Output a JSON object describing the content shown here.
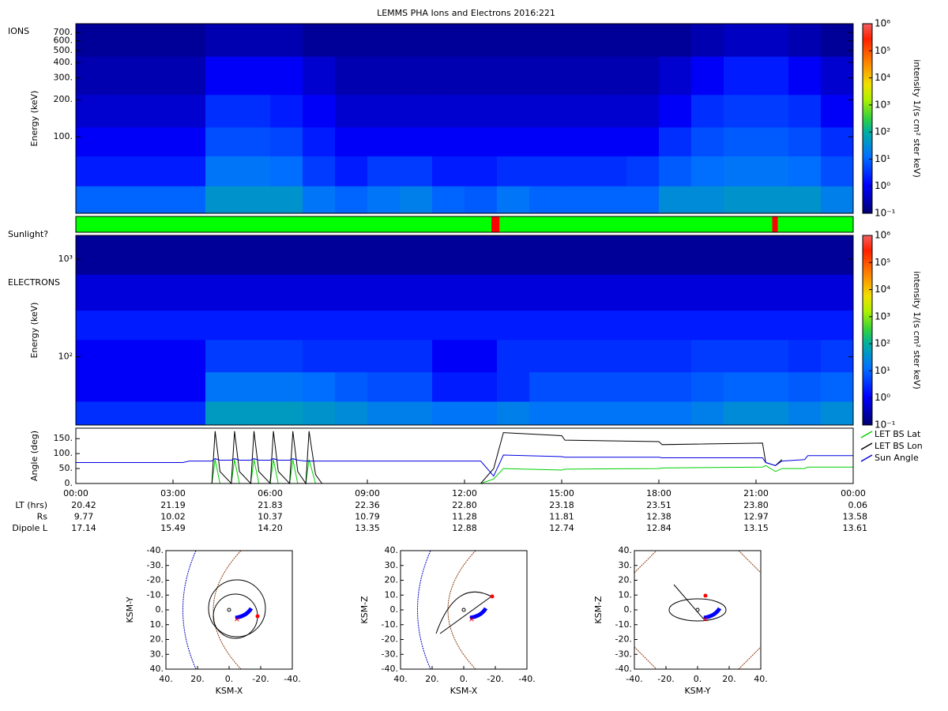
{
  "title": "LEMMS PHA Ions and Electrons  2016:221",
  "chart_data": [
    {
      "type": "heatmap",
      "label": "IONS",
      "ylabel": "Energy (keV)",
      "log": true,
      "xlim": [
        0,
        24
      ],
      "ylim": [
        24,
        826
      ],
      "yticks": [
        {
          "value": 100,
          "label": "100."
        },
        {
          "value": 200,
          "label": "200."
        },
        {
          "value": 300,
          "label": "300."
        },
        {
          "value": 400,
          "label": "400."
        },
        {
          "value": 500,
          "label": "500."
        },
        {
          "value": 600,
          "label": "600."
        },
        {
          "value": 700,
          "label": "700."
        }
      ],
      "time_bins": [
        0,
        1,
        2,
        3,
        4,
        5,
        6,
        7,
        8,
        9,
        10,
        11,
        12,
        13,
        14,
        15,
        16,
        17,
        18,
        19,
        20,
        21,
        22,
        23,
        24
      ],
      "energy_edges": [
        24,
        40,
        70,
        120,
        220,
        450,
        826
      ],
      "intensity": [
        [
          10,
          10,
          10,
          10,
          40,
          40,
          40,
          15,
          10,
          15,
          20,
          10,
          8,
          15,
          10,
          10,
          10,
          10,
          30,
          30,
          40,
          40,
          40,
          20
        ],
        [
          2,
          2,
          2,
          2,
          15,
          15,
          12,
          4,
          2,
          4,
          4,
          2,
          2,
          3,
          3,
          3,
          3,
          4,
          8,
          12,
          15,
          15,
          12,
          6
        ],
        [
          1,
          1,
          1,
          1,
          6,
          6,
          5,
          2,
          1,
          1,
          1,
          1,
          1,
          1,
          1,
          1,
          1,
          1,
          3,
          6,
          8,
          8,
          6,
          3
        ],
        [
          0.5,
          0.5,
          0.5,
          0.5,
          3,
          3,
          2,
          1,
          0.5,
          0.5,
          0.5,
          0.5,
          0.5,
          0.5,
          0.5,
          0.5,
          0.5,
          0.5,
          1,
          3,
          4,
          4,
          3,
          1
        ],
        [
          0.3,
          0.3,
          0.3,
          0.3,
          1,
          1,
          1,
          0.5,
          0.3,
          0.3,
          0.3,
          0.3,
          0.3,
          0.3,
          0.3,
          0.3,
          0.3,
          0.3,
          0.5,
          1,
          2,
          2,
          1,
          0.5
        ],
        [
          0.2,
          0.2,
          0.2,
          0.2,
          0.3,
          0.3,
          0.3,
          0.2,
          0.2,
          0.2,
          0.2,
          0.2,
          0.2,
          0.2,
          0.2,
          0.2,
          0.2,
          0.2,
          0.2,
          0.3,
          0.4,
          0.4,
          0.3,
          0.2
        ]
      ],
      "colorbar": {
        "label": "intensity 1/(s cm² ster keV)",
        "clim": [
          0.1,
          1000000
        ],
        "ticks": [
          {
            "value": 0.1,
            "label": "10⁻¹"
          },
          {
            "value": 1,
            "label": "10⁰"
          },
          {
            "value": 10,
            "label": "10¹"
          },
          {
            "value": 100,
            "label": "10²"
          },
          {
            "value": 1000,
            "label": "10³"
          },
          {
            "value": 10000,
            "label": "10⁴"
          },
          {
            "value": 100000,
            "label": "10⁵"
          },
          {
            "value": 1000000,
            "label": "10⁶"
          }
        ]
      }
    },
    {
      "type": "band",
      "label": "Sunlight?",
      "xlim": [
        0,
        24
      ],
      "color": "#00ff00",
      "shadow_color": "#ff0000",
      "shadow_intervals": [
        [
          12.83,
          13.08
        ],
        [
          21.5,
          21.67
        ]
      ]
    },
    {
      "type": "heatmap",
      "label": "ELECTRONS",
      "ylabel": "Energy (keV)",
      "log": true,
      "xlim": [
        0,
        24
      ],
      "ylim": [
        20,
        1750
      ],
      "yticks": [
        {
          "value": 100,
          "label": "10²"
        },
        {
          "value": 1000,
          "label": "10³"
        }
      ],
      "time_bins": [
        0,
        1,
        2,
        3,
        4,
        5,
        6,
        7,
        8,
        9,
        10,
        11,
        12,
        13,
        14,
        15,
        16,
        17,
        18,
        19,
        20,
        21,
        22,
        23,
        24
      ],
      "energy_edges": [
        20,
        35,
        70,
        150,
        300,
        700,
        1750
      ],
      "intensity": [
        [
          3,
          3,
          3,
          3,
          50,
          50,
          50,
          40,
          30,
          20,
          20,
          15,
          15,
          20,
          15,
          15,
          15,
          15,
          15,
          20,
          30,
          30,
          20,
          30
        ],
        [
          1,
          1,
          1,
          1,
          15,
          15,
          15,
          12,
          8,
          6,
          6,
          2,
          2,
          3,
          6,
          6,
          6,
          6,
          6,
          8,
          10,
          10,
          8,
          10
        ],
        [
          1,
          1,
          1,
          1,
          4,
          4,
          4,
          3,
          3,
          3,
          3,
          1,
          1,
          3,
          3,
          3,
          3,
          3,
          3,
          4,
          4,
          4,
          3,
          4
        ],
        [
          2,
          2,
          2,
          2,
          2,
          2,
          2,
          2,
          2,
          2,
          2,
          2,
          2,
          2,
          2,
          2,
          2,
          2,
          2,
          2,
          2,
          2,
          2,
          2
        ],
        [
          0.6,
          0.6,
          0.6,
          0.6,
          0.6,
          0.6,
          0.6,
          0.6,
          0.6,
          0.6,
          0.6,
          0.6,
          0.6,
          0.6,
          0.6,
          0.6,
          0.6,
          0.6,
          0.6,
          0.6,
          0.6,
          0.6,
          0.6,
          0.6
        ],
        [
          0.2,
          0.2,
          0.2,
          0.2,
          0.2,
          0.2,
          0.2,
          0.2,
          0.2,
          0.2,
          0.2,
          0.2,
          0.2,
          0.2,
          0.2,
          0.2,
          0.2,
          0.2,
          0.2,
          0.2,
          0.2,
          0.2,
          0.2,
          0.2
        ]
      ],
      "colorbar": {
        "label": "intensity 1/(s cm² ster keV)",
        "clim": [
          0.1,
          1000000
        ],
        "ticks": [
          {
            "value": 0.1,
            "label": "10⁻¹"
          },
          {
            "value": 1,
            "label": "10⁰"
          },
          {
            "value": 10,
            "label": "10¹"
          },
          {
            "value": 100,
            "label": "10²"
          },
          {
            "value": 1000,
            "label": "10³"
          },
          {
            "value": 10000,
            "label": "10⁴"
          },
          {
            "value": 100000,
            "label": "10⁵"
          },
          {
            "value": 1000000,
            "label": "10⁶"
          }
        ]
      }
    },
    {
      "type": "line",
      "ylabel": "Angle (deg)",
      "xlim": [
        0,
        24
      ],
      "ylim": [
        0,
        185
      ],
      "yticks": [
        {
          "value": 0,
          "label": "0."
        },
        {
          "value": 50,
          "label": "50."
        },
        {
          "value": 100,
          "label": "100."
        },
        {
          "value": 150,
          "label": "150."
        }
      ],
      "xticks": [
        {
          "value": 0,
          "label": "00:00"
        },
        {
          "value": 3,
          "label": "03:00"
        },
        {
          "value": 6,
          "label": "06:00"
        },
        {
          "value": 9,
          "label": "09:00"
        },
        {
          "value": 12,
          "label": "12:00"
        },
        {
          "value": 15,
          "label": "15:00"
        },
        {
          "value": 18,
          "label": "18:00"
        },
        {
          "value": 21,
          "label": "21:00"
        },
        {
          "value": 24,
          "label": "00:00"
        }
      ],
      "x": [
        0,
        3.3,
        3.5,
        4.2,
        4.3,
        4.45,
        4.8,
        4.9,
        5.05,
        5.4,
        5.5,
        5.65,
        6.0,
        6.1,
        6.25,
        6.6,
        6.7,
        6.85,
        7.1,
        7.2,
        7.4,
        7.6,
        12.5,
        12.9,
        13.2,
        15,
        15.1,
        18,
        18.1,
        21.2,
        21.3,
        21.6,
        21.8,
        22.5,
        22.6,
        24
      ],
      "series": [
        {
          "name": "LET BS Lat",
          "color": "#00d000",
          "values": [
            null,
            null,
            0,
            0,
            80,
            0,
            0,
            80,
            0,
            0,
            80,
            0,
            0,
            80,
            0,
            0,
            80,
            0,
            0,
            80,
            0,
            0,
            0,
            15,
            50,
            45,
            48,
            50,
            52,
            55,
            60,
            40,
            50,
            50,
            55,
            55
          ]
        },
        {
          "name": "LET BS Lon",
          "color": "#000000",
          "values": [
            null,
            null,
            0,
            0,
            175,
            40,
            0,
            175,
            40,
            0,
            175,
            40,
            0,
            175,
            40,
            0,
            175,
            40,
            0,
            175,
            30,
            0,
            0,
            50,
            170,
            160,
            145,
            140,
            130,
            135,
            70,
            60,
            80,
            null,
            null,
            null
          ]
        },
        {
          "name": "Sun Angle",
          "color": "#0000e0",
          "values": [
            70,
            70,
            75,
            75,
            83,
            78,
            78,
            83,
            78,
            78,
            83,
            78,
            78,
            83,
            78,
            78,
            83,
            78,
            75,
            75,
            75,
            75,
            75,
            25,
            95,
            90,
            88,
            88,
            86,
            86,
            70,
            60,
            75,
            80,
            93,
            93
          ]
        }
      ]
    }
  ],
  "ephemeris": [
    {
      "label": "LT (hrs)",
      "values": [
        "20.42",
        "21.19",
        "21.83",
        "22.36",
        "22.80",
        "23.18",
        "23.51",
        "23.80",
        "0.06"
      ]
    },
    {
      "label": "Rs",
      "values": [
        "9.77",
        "10.02",
        "10.37",
        "10.79",
        "11.28",
        "11.81",
        "12.38",
        "12.97",
        "13.58"
      ]
    },
    {
      "label": "Dipole L",
      "values": [
        "17.14",
        "15.49",
        "14.20",
        "13.35",
        "12.88",
        "12.74",
        "12.84",
        "13.15",
        "13.61"
      ]
    }
  ],
  "orbit_plots": [
    {
      "xlabel": "KSM-X",
      "ylabel": "KSM-Y",
      "xlim": [
        40,
        -40
      ],
      "ylim": [
        40,
        -40
      ],
      "xticks": [
        {
          "value": 40,
          "label": "40."
        },
        {
          "value": 20,
          "label": "20."
        },
        {
          "value": 0,
          "label": "0."
        },
        {
          "value": -20,
          "label": "-20."
        },
        {
          "value": -40,
          "label": "-40."
        }
      ],
      "yticks": [
        {
          "value": -40,
          "label": "-40."
        },
        {
          "value": -30,
          "label": "-30."
        },
        {
          "value": -20,
          "label": "-20."
        },
        {
          "value": -10,
          "label": "-10."
        },
        {
          "value": 0,
          "label": "0."
        },
        {
          "value": 10,
          "label": "10."
        },
        {
          "value": 20,
          "label": "20."
        },
        {
          "value": 30,
          "label": "30."
        },
        {
          "value": 40,
          "label": "40."
        }
      ]
    },
    {
      "xlabel": "KSM-X",
      "ylabel": "KSM-Z",
      "xlim": [
        40,
        -40
      ],
      "ylim": [
        -40,
        40
      ],
      "xticks": [
        {
          "value": 40,
          "label": "40."
        },
        {
          "value": 20,
          "label": "20."
        },
        {
          "value": 0,
          "label": "0."
        },
        {
          "value": -20,
          "label": "-20."
        },
        {
          "value": -40,
          "label": "-40."
        }
      ],
      "yticks": [
        {
          "value": 40,
          "label": "40."
        },
        {
          "value": 30,
          "label": "30."
        },
        {
          "value": 20,
          "label": "20."
        },
        {
          "value": 10,
          "label": "10."
        },
        {
          "value": 0,
          "label": "0."
        },
        {
          "value": -10,
          "label": "-10."
        },
        {
          "value": -20,
          "label": "-20."
        },
        {
          "value": -30,
          "label": "-30."
        },
        {
          "value": -40,
          "label": "-40."
        }
      ]
    },
    {
      "xlabel": "KSM-Y",
      "ylabel": "KSM-Z",
      "xlim": [
        -40,
        40
      ],
      "ylim": [
        -40,
        40
      ],
      "xticks": [
        {
          "value": -40,
          "label": "-40."
        },
        {
          "value": -20,
          "label": "-20."
        },
        {
          "value": 0,
          "label": "0."
        },
        {
          "value": 20,
          "label": "20."
        },
        {
          "value": 40,
          "label": "40."
        }
      ],
      "yticks": [
        {
          "value": 40,
          "label": "40."
        },
        {
          "value": 30,
          "label": "30."
        },
        {
          "value": 20,
          "label": "20."
        },
        {
          "value": 10,
          "label": "10."
        },
        {
          "value": 0,
          "label": "0."
        },
        {
          "value": -10,
          "label": "-10."
        },
        {
          "value": -20,
          "label": "-20."
        },
        {
          "value": -30,
          "label": "-30."
        },
        {
          "value": -40,
          "label": "-40."
        }
      ]
    }
  ]
}
